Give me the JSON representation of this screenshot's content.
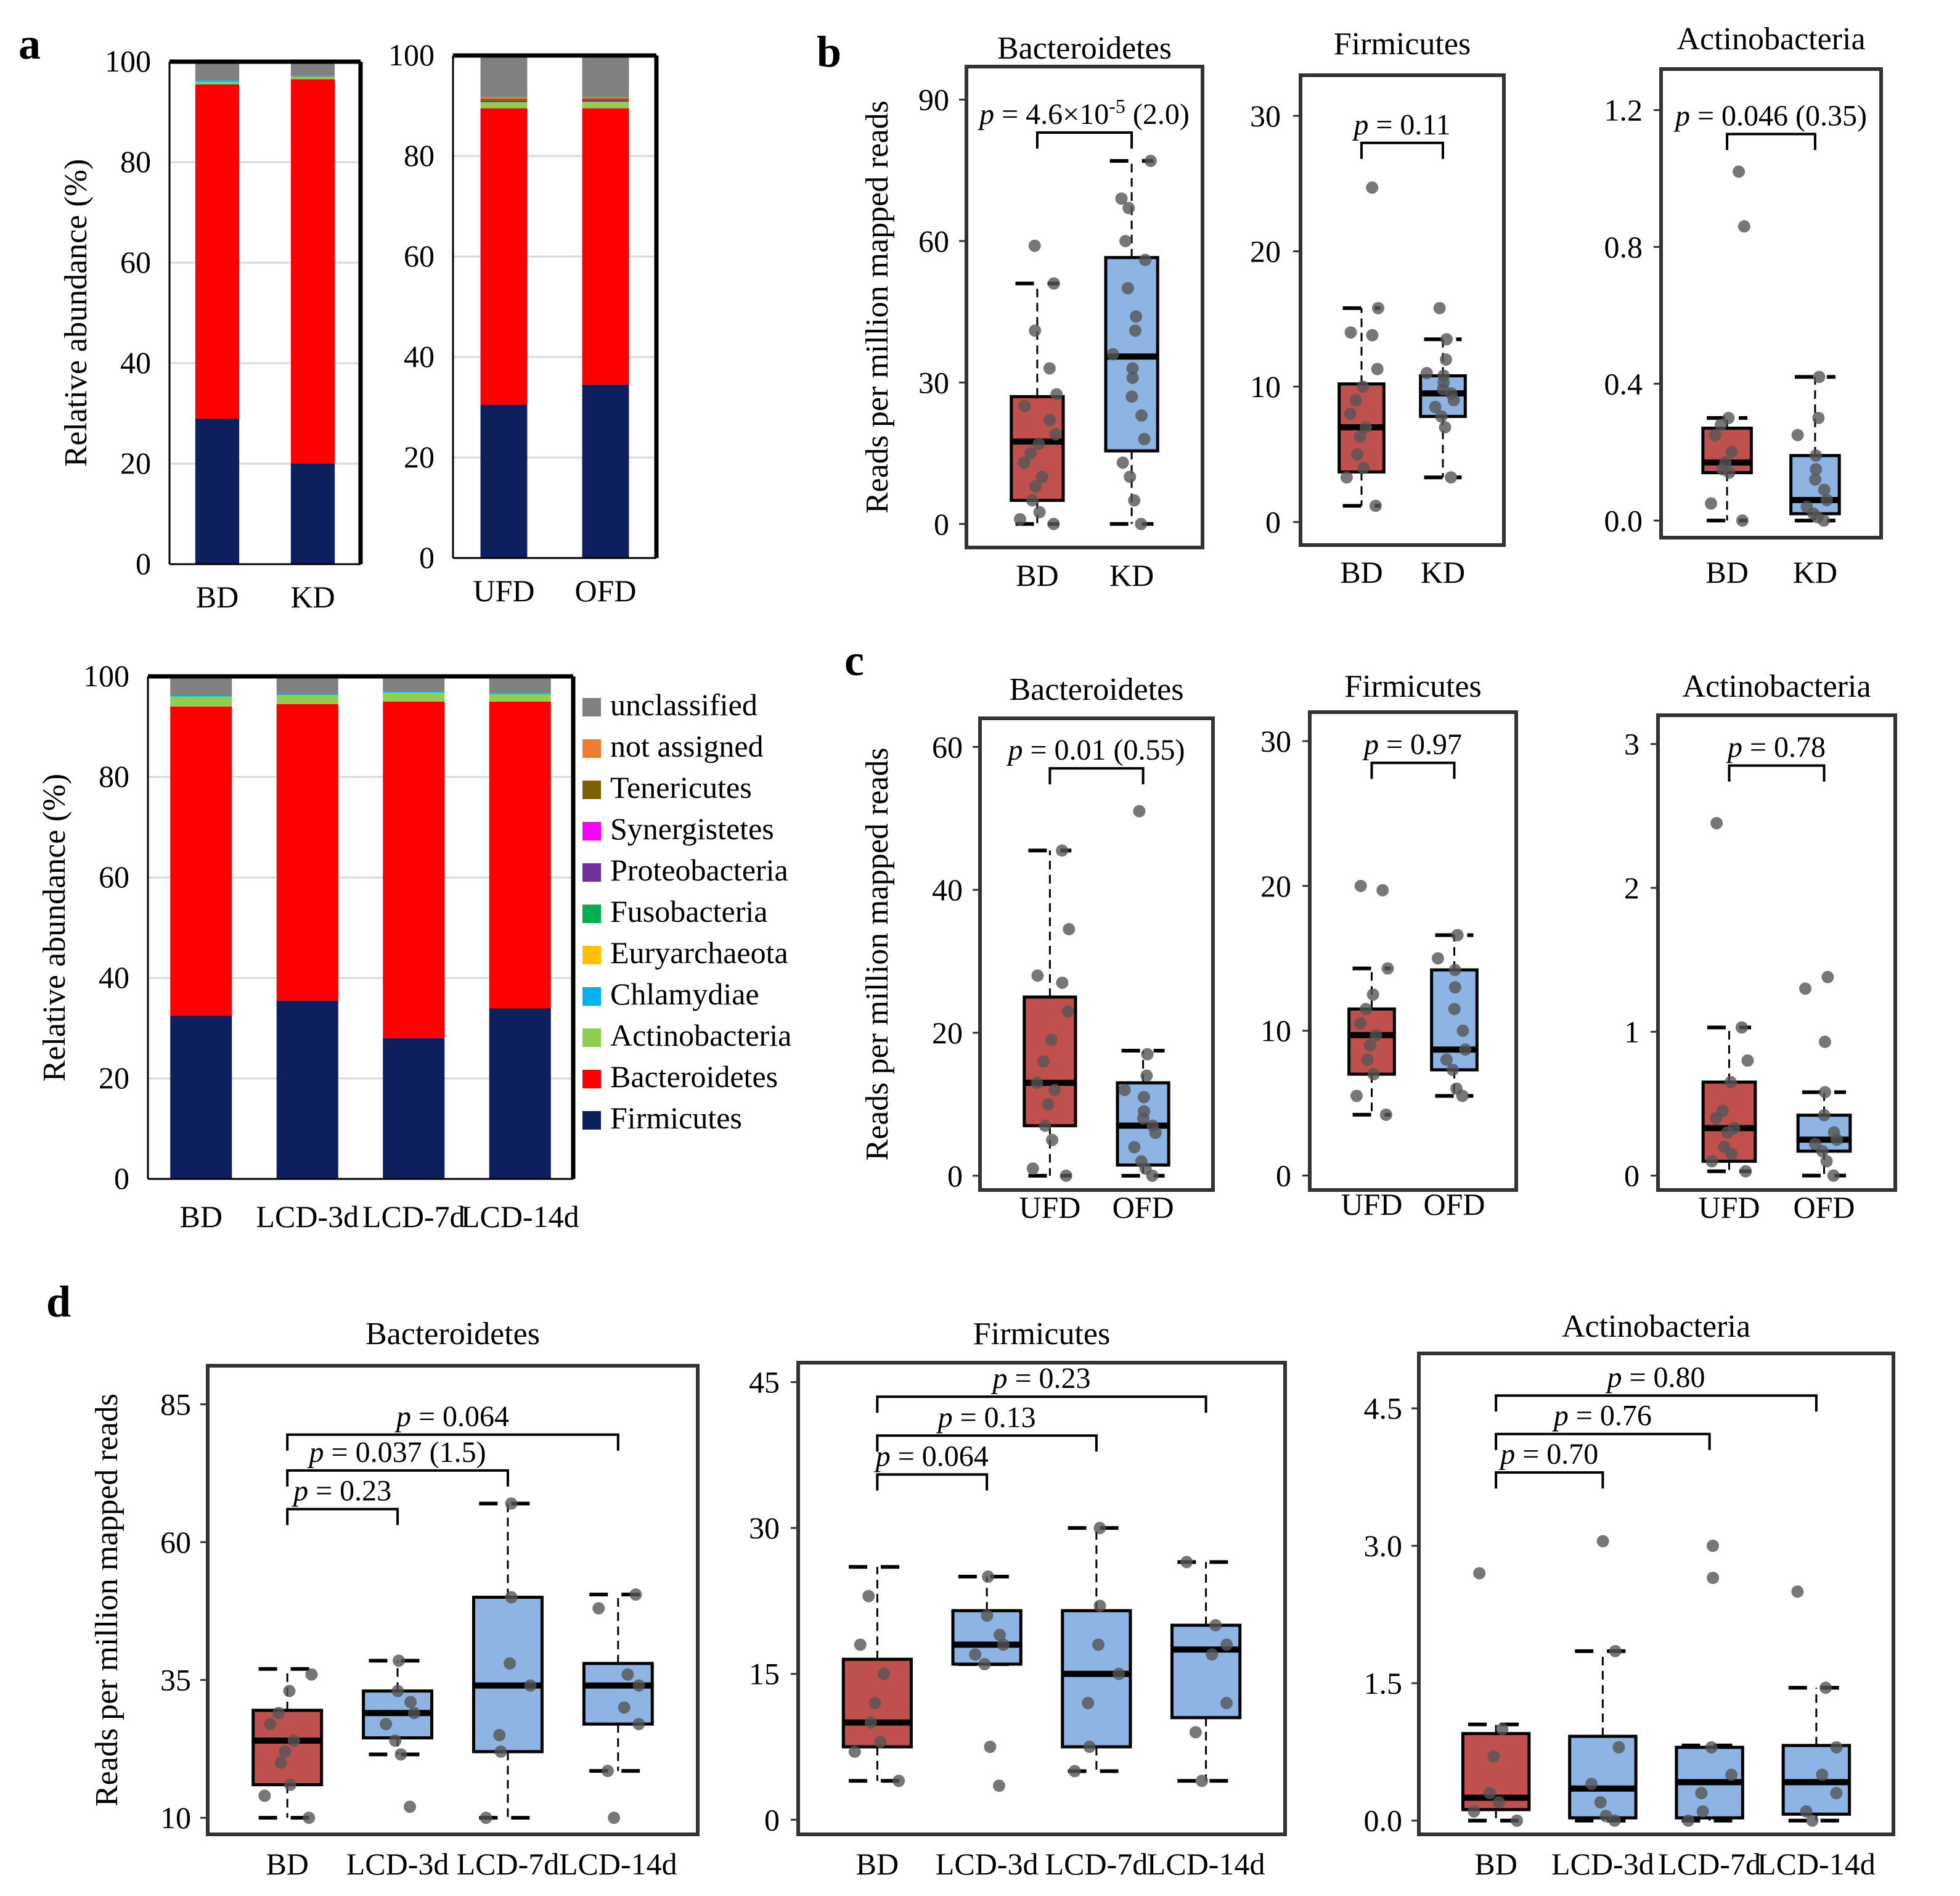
{
  "panel_letters": [
    "a",
    "b",
    "c",
    "d"
  ],
  "colors": {
    "Firmicutes": "#0d1f5c",
    "Bacteroidetes": "#ff0000",
    "Actinobacteria": "#8fce4e",
    "Chlamydiae": "#00b0f0",
    "Euryarchaeota": "#ffc000",
    "Fusobacteria": "#00b050",
    "Proteobacteria": "#7030a0",
    "Synergistetes": "#ff00ff",
    "Tenericutes": "#7f6000",
    "not assigned": "#ed7d31",
    "unclassified": "#808080",
    "box_red": "#c0504d",
    "box_blue": "#8db4e2",
    "point": "#555555"
  },
  "legend": {
    "labels": [
      "unclassified",
      "not assigned",
      "Tenericutes",
      "Synergistetes",
      "Proteobacteria",
      "Fusobacteria",
      "Euryarchaeota",
      "Chlamydiae",
      "Actinobacteria",
      "Bacteroidetes",
      "Firmicutes"
    ]
  },
  "chart_data": [
    {
      "id": "a1",
      "panel": "a",
      "type": "bar",
      "stacked": true,
      "ylabel": "Relative abundance (%)",
      "ylim": [
        0,
        100
      ],
      "yticks": [
        0,
        20,
        40,
        60,
        80,
        100
      ],
      "categories": [
        "BD",
        "KD"
      ],
      "series": [
        {
          "name": "Firmicutes",
          "values": [
            29,
            20
          ]
        },
        {
          "name": "Bacteroidetes",
          "values": [
            66.5,
            76.5
          ]
        },
        {
          "name": "Actinobacteria",
          "values": [
            0.5,
            0.5
          ]
        },
        {
          "name": "Chlamydiae",
          "values": [
            0.3,
            0.2
          ]
        },
        {
          "name": "unclassified",
          "values": [
            3.7,
            2.8
          ]
        }
      ]
    },
    {
      "id": "a2",
      "panel": "a",
      "type": "bar",
      "stacked": true,
      "ylabel": "",
      "ylim": [
        0,
        100
      ],
      "yticks": [
        0,
        20,
        40,
        60,
        80,
        100
      ],
      "categories": [
        "UFD",
        "OFD"
      ],
      "series": [
        {
          "name": "Firmicutes",
          "values": [
            30.5,
            34.5
          ]
        },
        {
          "name": "Bacteroidetes",
          "values": [
            59,
            55
          ]
        },
        {
          "name": "Actinobacteria",
          "values": [
            1.2,
            1.3
          ]
        },
        {
          "name": "Proteobacteria",
          "values": [
            0.3,
            0.3
          ]
        },
        {
          "name": "Tenericutes",
          "values": [
            0.4,
            0.4
          ]
        },
        {
          "name": "not assigned",
          "values": [
            0.3,
            0.2
          ]
        },
        {
          "name": "unclassified",
          "values": [
            8.3,
            8.3
          ]
        }
      ]
    },
    {
      "id": "a3",
      "panel": "a",
      "type": "bar",
      "stacked": true,
      "ylabel": "Relative abundance (%)",
      "ylim": [
        0,
        100
      ],
      "yticks": [
        0,
        20,
        40,
        60,
        80,
        100
      ],
      "categories": [
        "BD",
        "LCD-3d",
        "LCD-7d",
        "LCD-14d"
      ],
      "series": [
        {
          "name": "Firmicutes",
          "values": [
            32.5,
            35.5,
            28,
            34
          ]
        },
        {
          "name": "Bacteroidetes",
          "values": [
            61.5,
            59,
            67,
            61
          ]
        },
        {
          "name": "Actinobacteria",
          "values": [
            2,
            1.8,
            1.8,
            1.5
          ]
        },
        {
          "name": "Chlamydiae",
          "values": [
            0.2,
            0.2,
            0.2,
            0.2
          ]
        },
        {
          "name": "unclassified",
          "values": [
            3.8,
            3.5,
            3,
            3.3
          ]
        }
      ]
    },
    {
      "id": "b1",
      "panel": "b",
      "type": "box",
      "title": "Bacteroidetes",
      "ylabel": "Reads per million mapped reads",
      "ylim": [
        -5,
        97
      ],
      "yticks": [
        0,
        30,
        60,
        90
      ],
      "ytick_labels": [
        "0",
        "30",
        "60",
        "90"
      ],
      "categories": [
        "BD",
        "KD"
      ],
      "boxes": [
        {
          "whisker_low": 0,
          "q1": 5,
          "median": 17.5,
          "q3": 27,
          "whisker_high": 51,
          "points": [
            0,
            1,
            2.5,
            5,
            8,
            10,
            13,
            15,
            17,
            19,
            22,
            25,
            27.5,
            33,
            41,
            51,
            59
          ]
        },
        {
          "whisker_low": 0,
          "q1": 15.5,
          "median": 35.5,
          "q3": 56.5,
          "whisker_high": 77,
          "points": [
            0,
            5,
            10,
            13,
            18,
            23,
            27,
            31,
            33,
            36,
            41,
            44,
            50,
            56,
            60,
            67,
            69,
            77
          ]
        }
      ],
      "annotations": [
        {
          "from": 0,
          "to": 1,
          "level": 83,
          "text": "p = 4.6×10",
          "sup": "-5",
          "suffix": " (2.0)"
        }
      ]
    },
    {
      "id": "b2",
      "panel": "b",
      "type": "box",
      "title": "Firmicutes",
      "ylabel": "",
      "ylim": [
        -1.7,
        33
      ],
      "yticks": [
        0,
        10,
        20,
        30
      ],
      "ytick_labels": [
        "0",
        "10",
        "20",
        "30"
      ],
      "categories": [
        "BD",
        "KD"
      ],
      "boxes": [
        {
          "whisker_low": 1.2,
          "q1": 3.7,
          "median": 7,
          "q3": 10.2,
          "whisker_high": 15.8,
          "points": [
            1.2,
            3.3,
            4,
            5,
            6.3,
            7,
            8,
            9,
            10,
            11.3,
            13.8,
            14,
            15.8,
            24.7
          ]
        },
        {
          "whisker_low": 3.3,
          "q1": 7.8,
          "median": 9.5,
          "q3": 10.8,
          "whisker_high": 13.5,
          "points": [
            3.3,
            7,
            7.8,
            8.5,
            9,
            9.5,
            9.8,
            10.3,
            10.8,
            11,
            12,
            13.5,
            15.8
          ]
        }
      ],
      "annotations": [
        {
          "from": 0,
          "to": 1,
          "level": 28,
          "text": "p = 0.11",
          "sup": "",
          "suffix": ""
        }
      ]
    },
    {
      "id": "b3",
      "panel": "b",
      "type": "box",
      "title": "Actinobacteria",
      "ylabel": "",
      "ylim": [
        -0.05,
        1.32
      ],
      "yticks": [
        0,
        0.4,
        0.8,
        1.2
      ],
      "ytick_labels": [
        "0.0",
        "0.4",
        "0.8",
        "1.2"
      ],
      "categories": [
        "BD",
        "KD"
      ],
      "boxes": [
        {
          "whisker_low": 0,
          "q1": 0.14,
          "median": 0.17,
          "q3": 0.27,
          "whisker_high": 0.3,
          "points": [
            0,
            0.05,
            0.14,
            0.15,
            0.17,
            0.2,
            0.25,
            0.28,
            0.3,
            0.86,
            1.02
          ]
        },
        {
          "whisker_low": 0,
          "q1": 0.02,
          "median": 0.06,
          "q3": 0.19,
          "whisker_high": 0.42,
          "points": [
            0,
            0.01,
            0.02,
            0.04,
            0.06,
            0.09,
            0.12,
            0.15,
            0.19,
            0.25,
            0.3,
            0.42
          ]
        }
      ],
      "annotations": [
        {
          "from": 0,
          "to": 1,
          "level": 1.13,
          "text": "p = 0.046 (0.35)",
          "sup": "",
          "suffix": ""
        }
      ]
    },
    {
      "id": "c1",
      "panel": "c",
      "type": "box",
      "title": "Bacteroidetes",
      "ylabel": "Reads per million mapped reads",
      "ylim": [
        -2,
        64
      ],
      "yticks": [
        0,
        20,
        40,
        60
      ],
      "ytick_labels": [
        "0",
        "20",
        "40",
        "60"
      ],
      "categories": [
        "UFD",
        "OFD"
      ],
      "boxes": [
        {
          "whisker_low": 0,
          "q1": 7,
          "median": 13,
          "q3": 25,
          "whisker_high": 45.5,
          "points": [
            0,
            1,
            5,
            7,
            10,
            12,
            13,
            16,
            19,
            23,
            27,
            28,
            34.5,
            45.5
          ]
        },
        {
          "whisker_low": 0,
          "q1": 1.5,
          "median": 7,
          "q3": 13,
          "whisker_high": 17.5,
          "points": [
            0,
            1,
            2,
            4,
            6,
            7,
            8,
            9,
            11,
            12,
            14,
            17,
            51
          ]
        }
      ],
      "annotations": [
        {
          "from": 0,
          "to": 1,
          "level": 57,
          "text": "p = 0.01 (0.55)",
          "sup": "",
          "suffix": ""
        }
      ]
    },
    {
      "id": "c2",
      "panel": "c",
      "type": "box",
      "title": "Firmicutes",
      "ylabel": "",
      "ylim": [
        -1,
        32
      ],
      "yticks": [
        0,
        10,
        20,
        30
      ],
      "ytick_labels": [
        "0",
        "10",
        "20",
        "30"
      ],
      "categories": [
        "UFD",
        "OFD"
      ],
      "boxes": [
        {
          "whisker_low": 4.2,
          "q1": 7,
          "median": 9.7,
          "q3": 11.5,
          "whisker_high": 14.3,
          "points": [
            4.2,
            5.5,
            7,
            8,
            9,
            9.7,
            10.5,
            11.5,
            12.5,
            14.3,
            19.7,
            20
          ]
        },
        {
          "whisker_low": 5.5,
          "q1": 7.3,
          "median": 8.7,
          "q3": 14.2,
          "whisker_high": 16.6,
          "points": [
            5.5,
            6,
            7.3,
            8,
            8.7,
            10,
            11.5,
            13,
            14.2,
            15,
            16.6
          ]
        }
      ],
      "annotations": [
        {
          "from": 0,
          "to": 1,
          "level": 28.5,
          "text": "p = 0.97",
          "sup": "",
          "suffix": ""
        }
      ]
    },
    {
      "id": "c3",
      "panel": "c",
      "type": "box",
      "title": "Actinobacteria",
      "ylabel": "",
      "ylim": [
        -0.1,
        3.2
      ],
      "yticks": [
        0,
        1,
        2,
        3
      ],
      "ytick_labels": [
        "0",
        "1",
        "2",
        "3"
      ],
      "categories": [
        "UFD",
        "OFD"
      ],
      "boxes": [
        {
          "whisker_low": 0.03,
          "q1": 0.1,
          "median": 0.33,
          "q3": 0.65,
          "whisker_high": 1.03,
          "points": [
            0.03,
            0.1,
            0.15,
            0.2,
            0.3,
            0.33,
            0.4,
            0.45,
            0.65,
            0.8,
            1.03,
            2.45
          ]
        },
        {
          "whisker_low": 0,
          "q1": 0.17,
          "median": 0.25,
          "q3": 0.42,
          "whisker_h igh": 0.58,
          "whisker_high": 0.58,
          "points": [
            0,
            0.1,
            0.17,
            0.22,
            0.25,
            0.3,
            0.42,
            0.58,
            0.93,
            1.3,
            1.38
          ]
        }
      ],
      "annotations": [
        {
          "from": 0,
          "to": 1,
          "level": 2.85,
          "text": "p = 0.78",
          "sup": "",
          "suffix": ""
        }
      ]
    },
    {
      "id": "d1",
      "panel": "d",
      "type": "box",
      "title": "Bacteroidetes",
      "ylabel": "Reads per million mapped reads",
      "ylim": [
        7,
        92
      ],
      "yticks": [
        10,
        35,
        60,
        85
      ],
      "ytick_labels": [
        "10",
        "35",
        "60",
        "85"
      ],
      "categories": [
        "BD",
        "LCD-3d",
        "LCD-7d",
        "LCD-14d"
      ],
      "boxes": [
        {
          "whisker_low": 10,
          "q1": 16,
          "median": 24,
          "q3": 29.5,
          "whisker_high": 37,
          "points": [
            10,
            14,
            16,
            20,
            22,
            24,
            27,
            29,
            33,
            36
          ]
        },
        {
          "whisker_low": 21.5,
          "q1": 24.5,
          "median": 29,
          "q3": 33,
          "whisker_high": 38.5,
          "points": [
            12,
            21.5,
            24,
            27,
            29,
            31,
            33,
            38.5
          ]
        },
        {
          "whisker_low": 10,
          "q1": 22,
          "median": 34,
          "q3": 50,
          "whisker_high": 67,
          "points": [
            10,
            22,
            25,
            34,
            38,
            50,
            67
          ]
        },
        {
          "whisker_low": 18.5,
          "q1": 27,
          "median": 34,
          "q3": 38,
          "whisker_high": 50.5,
          "points": [
            10,
            18.5,
            27,
            30,
            34,
            36,
            48,
            50.5
          ]
        }
      ],
      "annotations": [
        {
          "from": 0,
          "to": 1,
          "level": 66,
          "text": "p = 0.23",
          "sup": "",
          "suffix": ""
        },
        {
          "from": 0,
          "to": 2,
          "level": 73,
          "text": "p = 0.037 (1.5)",
          "sup": "",
          "suffix": ""
        },
        {
          "from": 0,
          "to": 3,
          "level": 79.5,
          "text": "p = 0.064",
          "sup": "",
          "suffix": ""
        }
      ]
    },
    {
      "id": "d2",
      "panel": "d",
      "type": "box",
      "title": "Firmicutes",
      "ylabel": "",
      "ylim": [
        -1.5,
        47
      ],
      "yticks": [
        0,
        15,
        30,
        45
      ],
      "ytick_labels": [
        "0",
        "15",
        "30",
        "45"
      ],
      "categories": [
        "BD",
        "LCD-3d",
        "LCD-7d",
        "LCD-14d"
      ],
      "boxes": [
        {
          "whisker_low": 4,
          "q1": 7.5,
          "median": 10,
          "q3": 16.5,
          "whisker_high": 26,
          "points": [
            4,
            7,
            8,
            10,
            12,
            15,
            18,
            23
          ]
        },
        {
          "whisker_low": 16,
          "q1": 16,
          "median": 18,
          "q3": 21.5,
          "whisker_h": 25,
          "whisker_high": 25,
          "points": [
            3.5,
            7.5,
            16,
            17,
            18,
            19,
            21,
            25
          ]
        },
        {
          "whisker_low": 5,
          "q1": 7.5,
          "median": 15,
          "q3": 21.5,
          "whisker_high": 30,
          "points": [
            5,
            7.5,
            12,
            15,
            18,
            22,
            30
          ]
        },
        {
          "whisker_low": 4,
          "q1": 10.5,
          "median": 17.5,
          "q3": 20,
          "whisker_high": 26.5,
          "points": [
            4,
            9,
            12,
            17,
            18,
            20,
            26.5
          ]
        }
      ],
      "annotations": [
        {
          "from": 0,
          "to": 1,
          "level": 35.5,
          "text": "p = 0.064",
          "sup": "",
          "suffix": ""
        },
        {
          "from": 0,
          "to": 2,
          "level": 39.5,
          "text": "p = 0.13",
          "sup": "",
          "suffix": ""
        },
        {
          "from": 0,
          "to": 3,
          "level": 43.5,
          "text": "p = 0.23",
          "sup": "",
          "suffix": ""
        }
      ]
    },
    {
      "id": "d3",
      "panel": "d",
      "type": "box",
      "title": "Actinobacteria",
      "ylabel": "",
      "ylim": [
        -0.15,
        5.1
      ],
      "yticks": [
        0,
        1.5,
        3,
        4.5
      ],
      "ytick_labels": [
        "0.0",
        "1.5",
        "3.0",
        "4.5"
      ],
      "categories": [
        "BD",
        "LCD-3d",
        "LCD-7d",
        "LCD-14d"
      ],
      "boxes": [
        {
          "whisker_low": 0,
          "q1": 0.12,
          "median": 0.25,
          "q3": 0.95,
          "whisker_high": 1.05,
          "points": [
            0,
            0.1,
            0.2,
            0.3,
            0.7,
            1.0,
            2.7
          ]
        },
        {
          "whisker_low": 0,
          "q1": 0.03,
          "median": 0.35,
          "q3": 0.92,
          "whisker_high": 1.85,
          "points": [
            0,
            0.05,
            0.2,
            0.4,
            0.8,
            1.85,
            3.05
          ]
        },
        {
          "whisker_low": 0,
          "q1": 0.03,
          "median": 0.42,
          "q3": 0.8,
          "whisker_high": 0.82,
          "points": [
            0,
            0.1,
            0.3,
            0.5,
            0.8,
            2.65,
            3.0
          ]
        },
        {
          "whisker_low": 0,
          "q1": 0.07,
          "median": 0.42,
          "q3": 0.82,
          "whisker_high": 1.45,
          "points": [
            0,
            0.1,
            0.3,
            0.5,
            0.8,
            1.45,
            2.5
          ]
        }
      ],
      "annotations": [
        {
          "from": 0,
          "to": 1,
          "level": 3.8,
          "text": "p = 0.70",
          "sup": "",
          "suffix": ""
        },
        {
          "from": 0,
          "to": 2,
          "level": 4.22,
          "text": "p = 0.76",
          "sup": "",
          "suffix": ""
        },
        {
          "from": 0,
          "to": 3,
          "level": 4.64,
          "text": "p = 0.80",
          "sup": "",
          "suffix": ""
        }
      ]
    }
  ]
}
